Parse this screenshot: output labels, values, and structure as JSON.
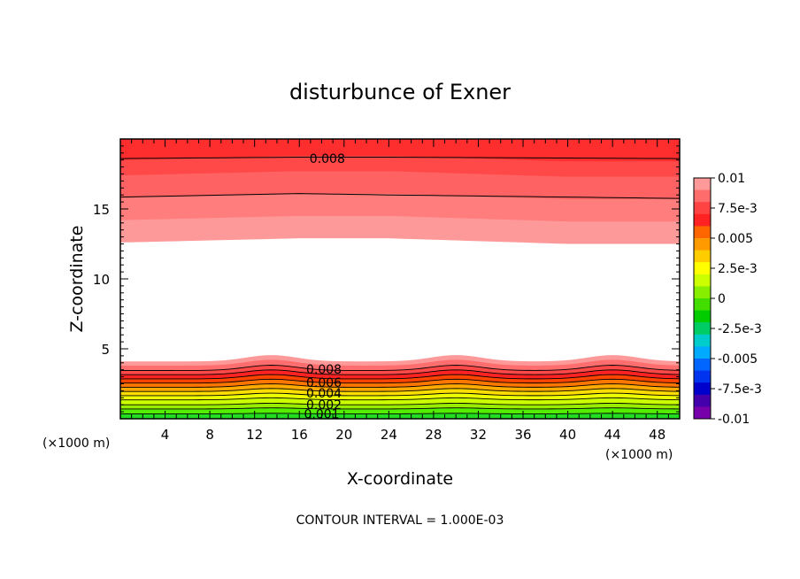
{
  "chart_data": {
    "type": "contour",
    "title": "disturbunce of Exner",
    "xlabel": "X-coordinate",
    "ylabel": "Z-coordinate",
    "x_unit_left": "(×1000 m)",
    "x_unit_right": "(×1000 m)",
    "footer": "CONTOUR INTERVAL = 1.000E-03",
    "xlim": [
      0,
      50
    ],
    "ylim": [
      0,
      20
    ],
    "x_ticks": [
      4,
      8,
      12,
      16,
      20,
      24,
      28,
      32,
      36,
      40,
      44,
      48
    ],
    "y_ticks": [
      5,
      10,
      15
    ],
    "contour_interval": 0.001,
    "contour_labels": [
      {
        "text": "0.008",
        "x": 18.5,
        "y": 18.6
      },
      {
        "text": "0.008",
        "x": 18.2,
        "y": 3.55
      },
      {
        "text": "0.006",
        "x": 18.2,
        "y": 2.6
      },
      {
        "text": "0.004",
        "x": 18.2,
        "y": 1.85
      },
      {
        "text": "0.002",
        "x": 18.2,
        "y": 1.0
      },
      {
        "text": "0.001",
        "x": 18.0,
        "y": 0.35
      }
    ],
    "top_band": {
      "boundary_y": [
        12.6,
        12.9,
        12.9,
        12.5
      ],
      "boundary_x": [
        0,
        16,
        24,
        40
      ],
      "levels_y": [
        {
          "x": [
            0,
            16,
            24,
            50
          ],
          "y": [
            15.85,
            16.1,
            16.0,
            15.75
          ]
        },
        {
          "x": [
            0,
            16,
            24,
            50
          ],
          "y": [
            18.6,
            18.7,
            18.7,
            18.6
          ]
        }
      ]
    },
    "bottom_band": {
      "base_top_y": 4.1,
      "bump_centers_x": [
        13.5,
        30.0,
        44.0
      ],
      "bump_amplitude": 0.45,
      "contour_levels_y": [
        0.35,
        0.7,
        1.0,
        1.35,
        1.65,
        1.95,
        2.25,
        2.55,
        2.85,
        3.15,
        3.45
      ]
    },
    "colorbar": {
      "labels": [
        "0.01",
        "7.5e-3",
        "0.005",
        "2.5e-3",
        "0",
        "-2.5e-3",
        "-0.005",
        "-7.5e-3",
        "-0.01"
      ],
      "colors": [
        "#fe9999",
        "#ff6c6c",
        "#ff4343",
        "#ff2222",
        "#ff6600",
        "#ff9a00",
        "#ffcc00",
        "#ffff00",
        "#ccff00",
        "#88ee00",
        "#44dd00",
        "#00cc00",
        "#00cc66",
        "#00cccc",
        "#00aaff",
        "#0066ff",
        "#0033ee",
        "#0000cc",
        "#4400aa",
        "#7700aa"
      ]
    }
  }
}
